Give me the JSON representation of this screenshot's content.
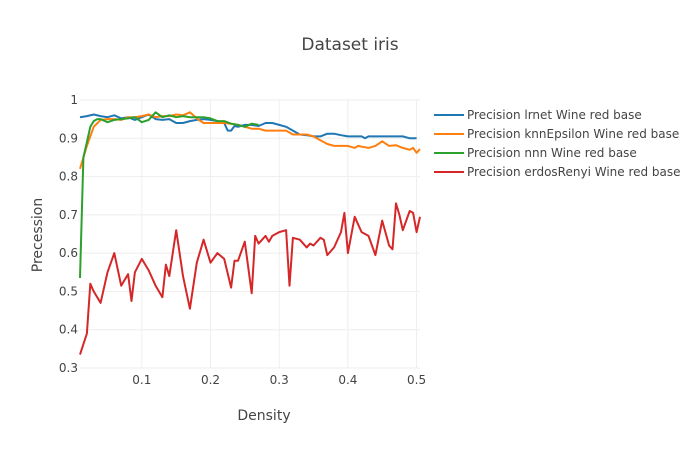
{
  "chart_data": {
    "type": "line",
    "title": "Dataset iris",
    "xlabel": "Density",
    "ylabel": "Precession",
    "xlim": [
      0.01,
      0.505
    ],
    "ylim": [
      0.3,
      1.0
    ],
    "xticks": [
      0.1,
      0.2,
      0.3,
      0.4,
      0.5
    ],
    "yticks": [
      0.3,
      0.4,
      0.5,
      0.6,
      0.7,
      0.8,
      0.9,
      1.0
    ],
    "ytick_labels": [
      "0.3",
      "0.4",
      "0.5",
      "0.6",
      "0.7",
      "0.8",
      "0.9",
      "1"
    ],
    "grid": true,
    "legend_position": "top-right",
    "series": [
      {
        "name": "Precision lrnet Wine red base",
        "color": "#1f77b4",
        "x": [
          0.01,
          0.02,
          0.03,
          0.04,
          0.05,
          0.06,
          0.07,
          0.08,
          0.09,
          0.1,
          0.11,
          0.12,
          0.13,
          0.14,
          0.15,
          0.16,
          0.17,
          0.18,
          0.19,
          0.2,
          0.21,
          0.22,
          0.225,
          0.23,
          0.235,
          0.24,
          0.25,
          0.26,
          0.27,
          0.28,
          0.29,
          0.3,
          0.31,
          0.32,
          0.33,
          0.34,
          0.35,
          0.36,
          0.37,
          0.38,
          0.39,
          0.4,
          0.41,
          0.42,
          0.425,
          0.43,
          0.44,
          0.45,
          0.46,
          0.47,
          0.48,
          0.49,
          0.5
        ],
        "y": [
          0.955,
          0.958,
          0.962,
          0.958,
          0.955,
          0.96,
          0.952,
          0.955,
          0.948,
          0.955,
          0.962,
          0.95,
          0.948,
          0.95,
          0.94,
          0.94,
          0.945,
          0.948,
          0.95,
          0.948,
          0.945,
          0.94,
          0.92,
          0.92,
          0.932,
          0.93,
          0.935,
          0.935,
          0.932,
          0.94,
          0.94,
          0.935,
          0.93,
          0.92,
          0.91,
          0.908,
          0.905,
          0.905,
          0.912,
          0.912,
          0.908,
          0.905,
          0.905,
          0.905,
          0.9,
          0.905,
          0.905,
          0.905,
          0.905,
          0.905,
          0.905,
          0.9,
          0.9
        ]
      },
      {
        "name": "Precision knnEpsilon Wine red base",
        "color": "#ff7f0e",
        "x": [
          0.01,
          0.02,
          0.03,
          0.04,
          0.05,
          0.06,
          0.07,
          0.08,
          0.09,
          0.1,
          0.11,
          0.12,
          0.13,
          0.14,
          0.15,
          0.16,
          0.17,
          0.18,
          0.19,
          0.2,
          0.21,
          0.22,
          0.23,
          0.24,
          0.25,
          0.26,
          0.27,
          0.28,
          0.29,
          0.3,
          0.31,
          0.32,
          0.33,
          0.34,
          0.35,
          0.36,
          0.37,
          0.38,
          0.39,
          0.4,
          0.41,
          0.415,
          0.42,
          0.43,
          0.44,
          0.45,
          0.46,
          0.47,
          0.48,
          0.49,
          0.495,
          0.5,
          0.505
        ],
        "y": [
          0.82,
          0.88,
          0.93,
          0.948,
          0.95,
          0.95,
          0.948,
          0.955,
          0.955,
          0.958,
          0.962,
          0.955,
          0.958,
          0.958,
          0.962,
          0.96,
          0.968,
          0.952,
          0.94,
          0.94,
          0.94,
          0.94,
          0.938,
          0.935,
          0.93,
          0.925,
          0.925,
          0.92,
          0.92,
          0.92,
          0.92,
          0.91,
          0.91,
          0.91,
          0.905,
          0.895,
          0.885,
          0.88,
          0.88,
          0.88,
          0.875,
          0.88,
          0.878,
          0.875,
          0.88,
          0.892,
          0.88,
          0.882,
          0.875,
          0.87,
          0.875,
          0.862,
          0.872
        ]
      },
      {
        "name": "Precision nnn Wine red base",
        "color": "#2ca02c",
        "x": [
          0.01,
          0.015,
          0.02,
          0.025,
          0.03,
          0.035,
          0.04,
          0.05,
          0.06,
          0.07,
          0.08,
          0.09,
          0.1,
          0.11,
          0.12,
          0.13,
          0.14,
          0.15,
          0.16,
          0.17,
          0.18,
          0.19,
          0.2,
          0.21,
          0.22,
          0.23,
          0.24,
          0.25,
          0.26,
          0.27
        ],
        "y": [
          0.535,
          0.85,
          0.89,
          0.93,
          0.945,
          0.95,
          0.95,
          0.942,
          0.948,
          0.95,
          0.952,
          0.955,
          0.942,
          0.948,
          0.968,
          0.955,
          0.96,
          0.955,
          0.958,
          0.955,
          0.955,
          0.955,
          0.952,
          0.945,
          0.945,
          0.938,
          0.935,
          0.93,
          0.938,
          0.935
        ]
      },
      {
        "name": "Precision erdosRenyi Wine red base",
        "color": "#d62728",
        "x": [
          0.01,
          0.02,
          0.025,
          0.03,
          0.04,
          0.05,
          0.06,
          0.07,
          0.08,
          0.085,
          0.09,
          0.1,
          0.11,
          0.12,
          0.13,
          0.135,
          0.14,
          0.15,
          0.16,
          0.17,
          0.18,
          0.19,
          0.2,
          0.21,
          0.22,
          0.23,
          0.235,
          0.24,
          0.25,
          0.26,
          0.265,
          0.27,
          0.28,
          0.285,
          0.29,
          0.3,
          0.31,
          0.315,
          0.32,
          0.33,
          0.34,
          0.345,
          0.35,
          0.36,
          0.365,
          0.37,
          0.38,
          0.39,
          0.395,
          0.4,
          0.41,
          0.42,
          0.43,
          0.44,
          0.45,
          0.46,
          0.465,
          0.47,
          0.475,
          0.48,
          0.49,
          0.495,
          0.5,
          0.505
        ],
        "y": [
          0.335,
          0.39,
          0.52,
          0.5,
          0.47,
          0.55,
          0.6,
          0.515,
          0.545,
          0.475,
          0.55,
          0.585,
          0.555,
          0.515,
          0.485,
          0.57,
          0.54,
          0.66,
          0.54,
          0.455,
          0.575,
          0.635,
          0.575,
          0.6,
          0.585,
          0.51,
          0.58,
          0.58,
          0.63,
          0.495,
          0.645,
          0.625,
          0.645,
          0.63,
          0.645,
          0.655,
          0.66,
          0.515,
          0.64,
          0.635,
          0.615,
          0.625,
          0.62,
          0.64,
          0.635,
          0.595,
          0.615,
          0.655,
          0.705,
          0.6,
          0.695,
          0.655,
          0.645,
          0.595,
          0.685,
          0.62,
          0.61,
          0.73,
          0.7,
          0.66,
          0.71,
          0.705,
          0.655,
          0.695
        ]
      }
    ]
  }
}
